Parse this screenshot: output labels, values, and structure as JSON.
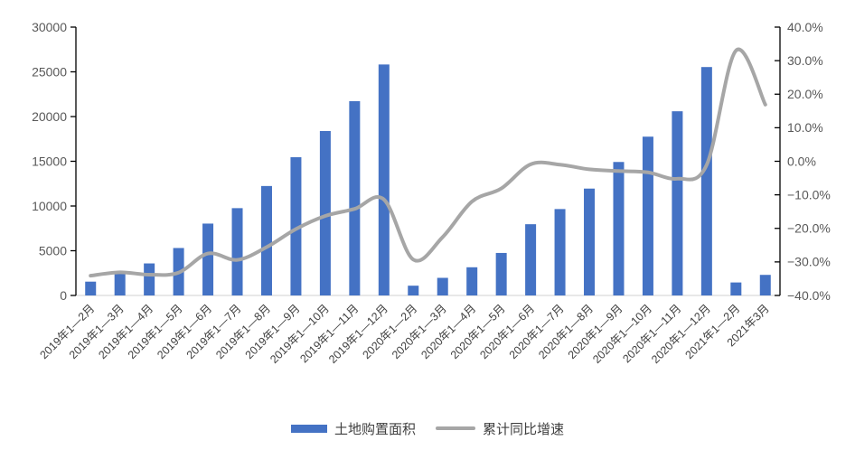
{
  "legend": {
    "bar_label": "土地购置面积",
    "line_label": "累计同比增速"
  },
  "colors": {
    "bar": "#4472C4",
    "line": "#A6A6A6",
    "axis": "#000000",
    "baseline": "#D9D9D9",
    "tick_text": "#595959",
    "x_label_text": "#404040",
    "background": "#FFFFFF"
  },
  "chart_data": {
    "type": "bar",
    "combo": "bar+line dual axis",
    "title": "",
    "grid": false,
    "legend_position": "bottom",
    "categories": [
      "2019年1—2月",
      "2019年1—3月",
      "2019年1—4月",
      "2019年1—5月",
      "2019年1—6月",
      "2019年1—7月",
      "2019年1—8月",
      "2019年1—9月",
      "2019年1—10月",
      "2019年1—11月",
      "2019年1—12月",
      "2020年1—2月",
      "2020年1—3月",
      "2020年1—4月",
      "2020年1—5月",
      "2020年1—6月",
      "2020年1—7月",
      "2020年1—8月",
      "2020年1—9月",
      "2020年1—10月",
      "2020年1—11月",
      "2020年1—12月",
      "2021年1—2月",
      "2021年3月"
    ],
    "series": [
      {
        "name": "土地购置面积",
        "type": "bar",
        "axis": "left",
        "color": "#4472C4",
        "values": [
          1545,
          2543,
          3582,
          5305,
          8035,
          9761,
          12236,
          15454,
          18383,
          21720,
          25822,
          1092,
          1969,
          3151,
          4752,
          7965,
          9659,
          11947,
          14922,
          17752,
          20591,
          25536,
          1453,
          2301
        ]
      },
      {
        "name": "累计同比增速",
        "type": "line",
        "axis": "right",
        "color": "#A6A6A6",
        "values": [
          -34.1,
          -33.1,
          -33.8,
          -33.2,
          -27.5,
          -29.4,
          -25.6,
          -20.2,
          -16.3,
          -14.2,
          -11.4,
          -29.3,
          -22.6,
          -12.0,
          -8.1,
          -0.9,
          -1.0,
          -2.4,
          -2.9,
          -3.3,
          -5.2,
          -1.1,
          33.0,
          16.9
        ]
      }
    ],
    "left_axis": {
      "min": 0,
      "max": 30000,
      "step": 5000,
      "tick_labels": [
        "0",
        "5000",
        "10000",
        "15000",
        "20000",
        "25000",
        "30000"
      ]
    },
    "right_axis": {
      "min": -40,
      "max": 40,
      "step": 10,
      "tick_labels": [
        "−40.0%",
        "−30.0%",
        "−20.0%",
        "−10.0%",
        "0.0%",
        "10.0%",
        "20.0%",
        "30.0%",
        "40.0%"
      ]
    }
  }
}
